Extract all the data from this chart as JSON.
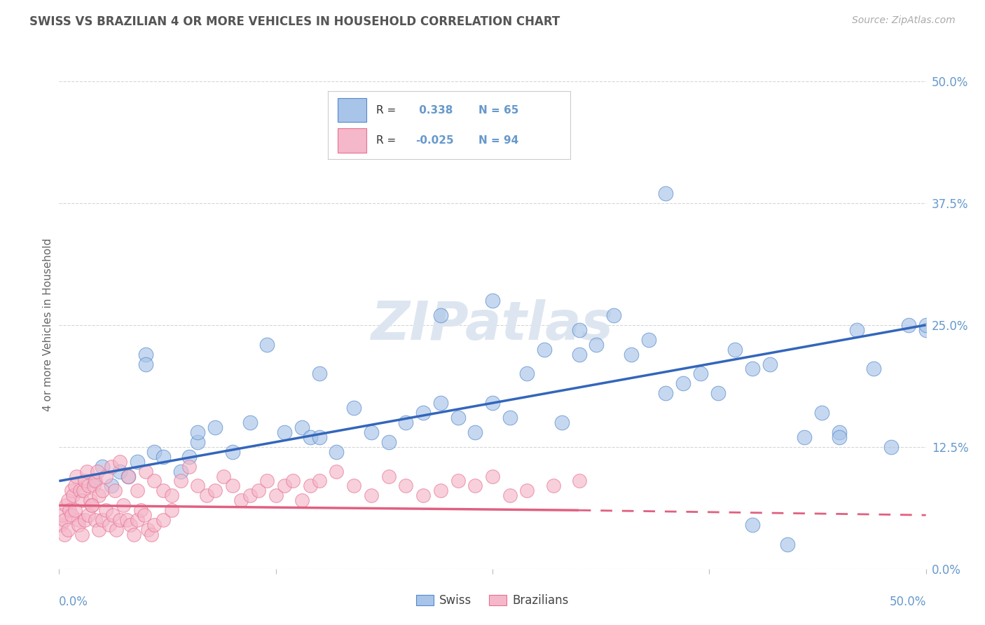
{
  "title": "SWISS VS BRAZILIAN 4 OR MORE VEHICLES IN HOUSEHOLD CORRELATION CHART",
  "source_text": "Source: ZipAtlas.com",
  "ylabel": "4 or more Vehicles in Household",
  "ytick_values": [
    0.0,
    12.5,
    25.0,
    37.5,
    50.0
  ],
  "xlim": [
    0.0,
    50.0
  ],
  "ylim": [
    0.0,
    50.0
  ],
  "swiss_R": 0.338,
  "swiss_N": 65,
  "brazilian_R": -0.025,
  "brazilian_N": 94,
  "swiss_color": "#a8c4e8",
  "swiss_edge_color": "#5588cc",
  "swiss_line_color": "#3366bb",
  "brazilian_color": "#f4b8ca",
  "brazilian_edge_color": "#e87090",
  "brazilian_line_color": "#e06080",
  "background_color": "#ffffff",
  "grid_color": "#cccccc",
  "title_color": "#555555",
  "axis_label_color": "#6699cc",
  "watermark_color": "#dde6f0",
  "swiss_x": [
    2.0,
    2.5,
    3.0,
    3.5,
    4.0,
    4.5,
    5.0,
    5.5,
    6.0,
    7.0,
    7.5,
    8.0,
    9.0,
    10.0,
    11.0,
    12.0,
    13.0,
    14.0,
    14.5,
    15.0,
    16.0,
    17.0,
    18.0,
    19.0,
    20.0,
    21.0,
    22.0,
    23.0,
    24.0,
    25.0,
    26.0,
    27.0,
    28.0,
    29.0,
    30.0,
    31.0,
    32.0,
    33.0,
    34.0,
    35.0,
    36.0,
    37.0,
    38.0,
    39.0,
    40.0,
    41.0,
    42.0,
    43.0,
    44.0,
    45.0,
    46.0,
    47.0,
    48.0,
    49.0,
    50.0,
    5.0,
    8.0,
    15.0,
    22.0,
    30.0,
    35.0,
    40.0,
    45.0,
    50.0,
    25.0
  ],
  "swiss_y": [
    9.0,
    10.5,
    8.5,
    10.0,
    9.5,
    11.0,
    22.0,
    12.0,
    11.5,
    10.0,
    11.5,
    13.0,
    14.5,
    12.0,
    15.0,
    23.0,
    14.0,
    14.5,
    13.5,
    13.5,
    12.0,
    16.5,
    14.0,
    13.0,
    15.0,
    16.0,
    17.0,
    15.5,
    14.0,
    27.5,
    15.5,
    20.0,
    22.5,
    15.0,
    24.5,
    23.0,
    26.0,
    22.0,
    23.5,
    38.5,
    19.0,
    20.0,
    18.0,
    22.5,
    4.5,
    21.0,
    2.5,
    13.5,
    16.0,
    14.0,
    24.5,
    20.5,
    12.5,
    25.0,
    24.5,
    21.0,
    14.0,
    20.0,
    26.0,
    22.0,
    18.0,
    20.5,
    13.5,
    25.0,
    17.0
  ],
  "brazilian_x": [
    0.1,
    0.2,
    0.3,
    0.4,
    0.5,
    0.6,
    0.7,
    0.8,
    0.9,
    1.0,
    1.1,
    1.2,
    1.3,
    1.4,
    1.5,
    1.6,
    1.7,
    1.8,
    1.9,
    2.0,
    2.1,
    2.2,
    2.3,
    2.5,
    2.7,
    3.0,
    3.2,
    3.5,
    4.0,
    4.5,
    5.0,
    5.5,
    6.0,
    6.5,
    7.0,
    7.5,
    8.0,
    8.5,
    9.0,
    9.5,
    10.0,
    10.5,
    11.0,
    11.5,
    12.0,
    12.5,
    13.0,
    13.5,
    14.0,
    14.5,
    15.0,
    16.0,
    17.0,
    18.0,
    19.0,
    20.0,
    21.0,
    22.0,
    23.0,
    24.0,
    25.0,
    26.0,
    27.0,
    28.5,
    30.0,
    0.3,
    0.5,
    0.7,
    0.9,
    1.1,
    1.3,
    1.5,
    1.7,
    1.9,
    2.1,
    2.3,
    2.5,
    2.7,
    2.9,
    3.1,
    3.3,
    3.5,
    3.7,
    3.9,
    4.1,
    4.3,
    4.5,
    4.7,
    4.9,
    5.1,
    5.3,
    5.5,
    6.0,
    6.5
  ],
  "brazilian_y": [
    4.5,
    5.5,
    5.0,
    6.5,
    7.0,
    6.0,
    8.0,
    7.5,
    8.5,
    9.5,
    5.0,
    8.0,
    7.0,
    8.0,
    9.0,
    10.0,
    8.5,
    7.0,
    6.5,
    8.5,
    9.0,
    10.0,
    7.5,
    8.0,
    9.5,
    10.5,
    8.0,
    11.0,
    9.5,
    8.0,
    10.0,
    9.0,
    8.0,
    7.5,
    9.0,
    10.5,
    8.5,
    7.5,
    8.0,
    9.5,
    8.5,
    7.0,
    7.5,
    8.0,
    9.0,
    7.5,
    8.5,
    9.0,
    7.0,
    8.5,
    9.0,
    10.0,
    8.5,
    7.5,
    9.5,
    8.5,
    7.5,
    8.0,
    9.0,
    8.5,
    9.5,
    7.5,
    8.0,
    8.5,
    9.0,
    3.5,
    4.0,
    5.5,
    6.0,
    4.5,
    3.5,
    5.0,
    5.5,
    6.5,
    5.0,
    4.0,
    5.0,
    6.0,
    4.5,
    5.5,
    4.0,
    5.0,
    6.5,
    5.0,
    4.5,
    3.5,
    5.0,
    6.0,
    5.5,
    4.0,
    3.5,
    4.5,
    5.0,
    6.0
  ],
  "swiss_trendline_x": [
    0,
    50
  ],
  "swiss_trendline_y": [
    9.0,
    25.0
  ],
  "braz_trendline_x0": 0,
  "braz_trendline_x_solid_end": 30,
  "braz_trendline_x1": 50,
  "braz_trendline_y0": 6.5,
  "braz_trendline_y_solid_end": 6.0,
  "braz_trendline_y1": 5.5
}
